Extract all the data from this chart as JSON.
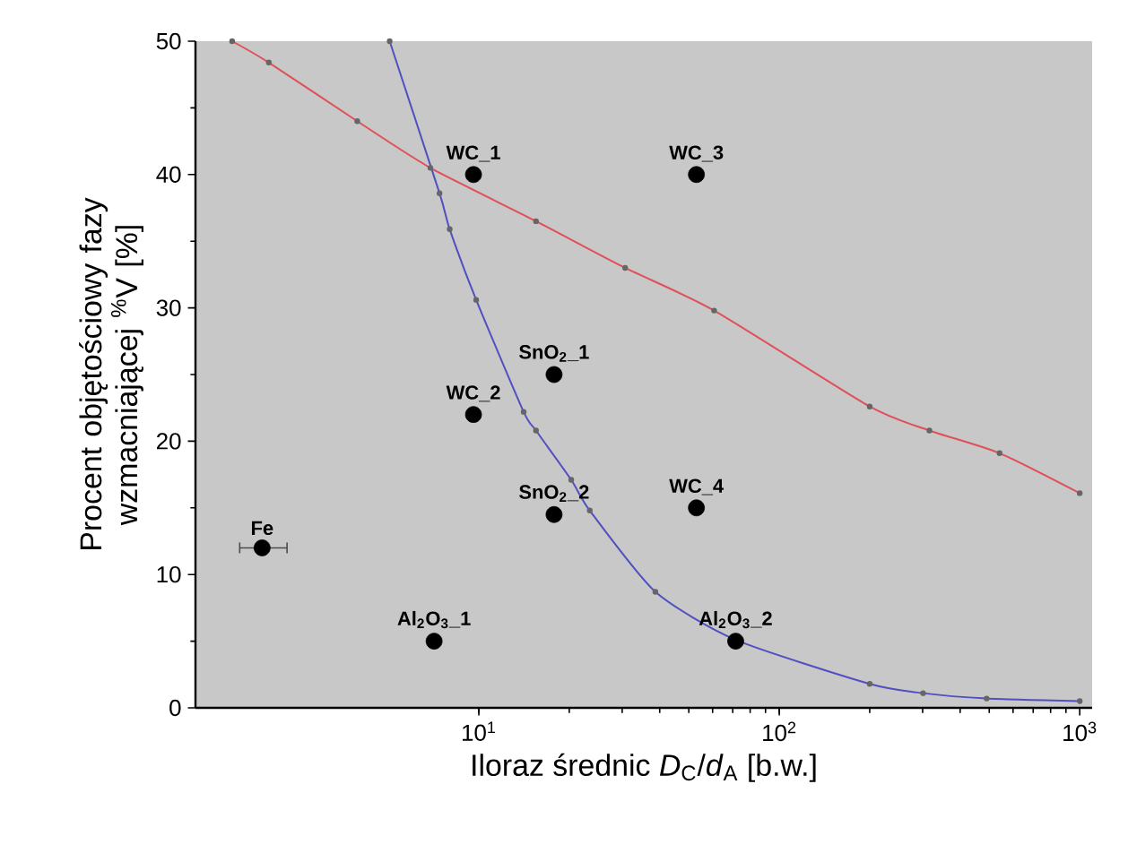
{
  "chart_data": {
    "type": "scatter",
    "xlabel": "Iloraz średnic *D*$_{C}$/*d*$_{A}$ [b.w.]",
    "ylabel": "Procent objętościowy fazy wzmacniającej $^{%}$V [%]",
    "log": "x",
    "xlim": [
      1.14,
      1100
    ],
    "ylim": [
      0,
      50
    ],
    "xticks": [
      {
        "value": 10,
        "label": "10$^{1}$"
      },
      {
        "value": 100,
        "label": "10$^{2}$"
      },
      {
        "value": 1000,
        "label": "10$^{3}$"
      }
    ],
    "yticks": [
      0,
      10,
      20,
      30,
      40,
      50
    ],
    "series": [
      {
        "type": "line",
        "color": "#e0505a",
        "marker": "circle",
        "x": [
          1.51,
          2.0,
          3.94,
          6.9,
          15.5,
          30.7,
          60.7,
          200,
          316,
          541,
          1000
        ],
        "values": [
          50,
          48.4,
          44.0,
          40.5,
          36.5,
          33,
          29.8,
          22.6,
          20.8,
          19.1,
          16.1
        ]
      },
      {
        "type": "line",
        "color": "#5050c0",
        "marker": "circle",
        "x": [
          5.05,
          7.4,
          8.0,
          9.8,
          14.1,
          15.5,
          20.3,
          23.4,
          38.7,
          71.6,
          200,
          301,
          490,
          1000
        ],
        "values": [
          50,
          38.6,
          35.9,
          30.6,
          22.2,
          20.8,
          17.1,
          14.8,
          8.7,
          5.1,
          1.8,
          1.1,
          0.7,
          0.5
        ]
      },
      {
        "type": "scatter",
        "color": "#000000",
        "marker": "circle",
        "x": [
          1.9,
          7.1,
          9.6,
          9.6,
          17.8,
          17.8,
          53,
          53,
          71.6
        ],
        "values": [
          12,
          5,
          40,
          22,
          25,
          14.5,
          40,
          15,
          5
        ],
        "xerrors": [
          [
            1.6,
            2.3
          ],
          null,
          null,
          null,
          null,
          null,
          null,
          null,
          null
        ]
      }
    ],
    "annotations": [
      {
        "text": "Fe",
        "x": 1.9,
        "y": 12
      },
      {
        "text": "Al$_{2}$O$_{3}$_1",
        "x": 7.1,
        "y": 5
      },
      {
        "text": "WC_1",
        "x": 9.6,
        "y": 40
      },
      {
        "text": "WC_2",
        "x": 9.6,
        "y": 22
      },
      {
        "text": "SnO$_{2}$_1",
        "x": 17.8,
        "y": 25
      },
      {
        "text": "SnO$_{2}$_2",
        "x": 17.8,
        "y": 14.5
      },
      {
        "text": "WC_3",
        "x": 53,
        "y": 40
      },
      {
        "text": "WC_4",
        "x": 53,
        "y": 15
      },
      {
        "text": "Al$_{2}$O$_{3}$_2",
        "x": 71.6,
        "y": 5
      }
    ]
  }
}
